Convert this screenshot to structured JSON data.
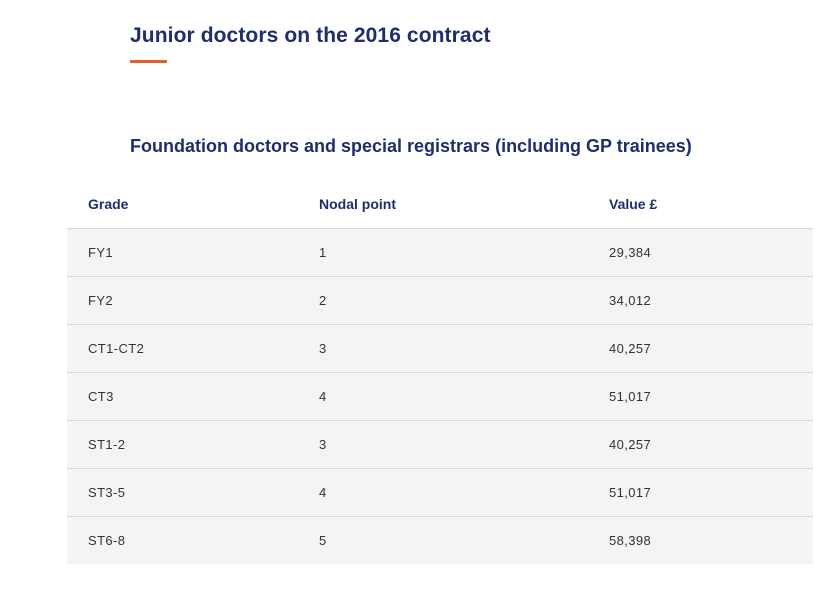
{
  "page": {
    "title": "Junior doctors on the 2016 contract",
    "section_title": "Foundation doctors and special registrars (including GP trainees)"
  },
  "colors": {
    "heading": "#1e2e6b",
    "accent_underline": "#e0622b",
    "row_background": "#f4f4f4"
  },
  "table": {
    "headers": [
      "Grade",
      "Nodal point",
      "Value £"
    ],
    "rows": [
      [
        "FY1",
        "1",
        "29,384"
      ],
      [
        "FY2",
        "2",
        "34,012"
      ],
      [
        "CT1-CT2",
        "3",
        "40,257"
      ],
      [
        "CT3",
        "4",
        "51,017"
      ],
      [
        "ST1-2",
        "3",
        "40,257"
      ],
      [
        "ST3-5",
        "4",
        "51,017"
      ],
      [
        "ST6-8",
        "5",
        "58,398"
      ]
    ]
  }
}
